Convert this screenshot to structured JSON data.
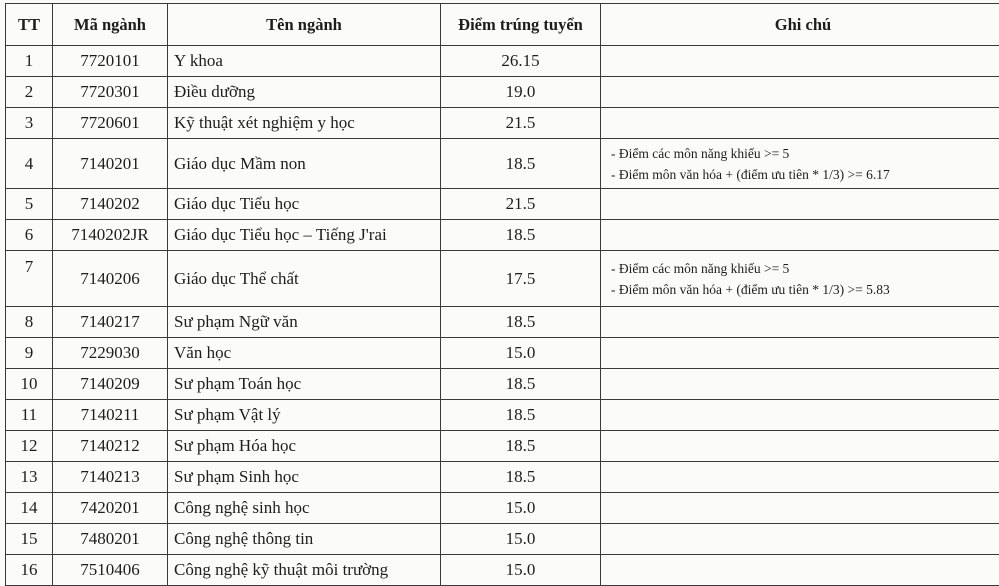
{
  "table": {
    "headers": [
      "TT",
      "Mã ngành",
      "Tên ngành",
      "Điểm trúng tuyển",
      "Ghi chú"
    ],
    "rows": [
      {
        "tt": "1",
        "code": "7720101",
        "name": "Y khoa",
        "score": "26.15",
        "notes": []
      },
      {
        "tt": "2",
        "code": "7720301",
        "name": "Điều dưỡng",
        "score": "19.0",
        "notes": []
      },
      {
        "tt": "3",
        "code": "7720601",
        "name": "Kỹ thuật xét nghiệm y học",
        "score": "21.5",
        "notes": []
      },
      {
        "tt": "4",
        "code": "7140201",
        "name": "Giáo dục Mầm non",
        "score": "18.5",
        "notes": [
          "- Điểm các môn năng khiếu >= 5",
          "- Điểm môn văn hóa + (điểm ưu tiên * 1/3) >= 6.17"
        ]
      },
      {
        "tt": "5",
        "code": "7140202",
        "name": "Giáo dục Tiểu học",
        "score": "21.5",
        "notes": []
      },
      {
        "tt": "6",
        "code": "7140202JR",
        "name": "Giáo dục Tiểu học – Tiếng J'rai",
        "score": "18.5",
        "notes": []
      },
      {
        "tt": "7",
        "code": "7140206",
        "name": "Giáo dục Thể chất",
        "score": "17.5",
        "notes": [
          "- Điểm các môn năng khiếu >= 5",
          "- Điểm môn văn hóa + (điểm ưu tiên * 1/3) >= 5.83"
        ]
      },
      {
        "tt": "8",
        "code": "7140217",
        "name": "Sư phạm Ngữ văn",
        "score": "18.5",
        "notes": []
      },
      {
        "tt": "9",
        "code": "7229030",
        "name": "Văn học",
        "score": "15.0",
        "notes": []
      },
      {
        "tt": "10",
        "code": "7140209",
        "name": "Sư phạm Toán học",
        "score": "18.5",
        "notes": []
      },
      {
        "tt": "11",
        "code": "7140211",
        "name": "Sư phạm Vật lý",
        "score": "18.5",
        "notes": []
      },
      {
        "tt": "12",
        "code": "7140212",
        "name": "Sư phạm Hóa học",
        "score": "18.5",
        "notes": []
      },
      {
        "tt": "13",
        "code": "7140213",
        "name": "Sư phạm Sinh học",
        "score": "18.5",
        "notes": []
      },
      {
        "tt": "14",
        "code": "7420201",
        "name": "Công nghệ sinh học",
        "score": "15.0",
        "notes": []
      },
      {
        "tt": "15",
        "code": "7480201",
        "name": "Công nghệ thông tin",
        "score": "15.0",
        "notes": []
      },
      {
        "tt": "16",
        "code": "7510406",
        "name": "Công nghệ kỹ thuật môi trường",
        "score": "15.0",
        "notes": []
      }
    ]
  }
}
